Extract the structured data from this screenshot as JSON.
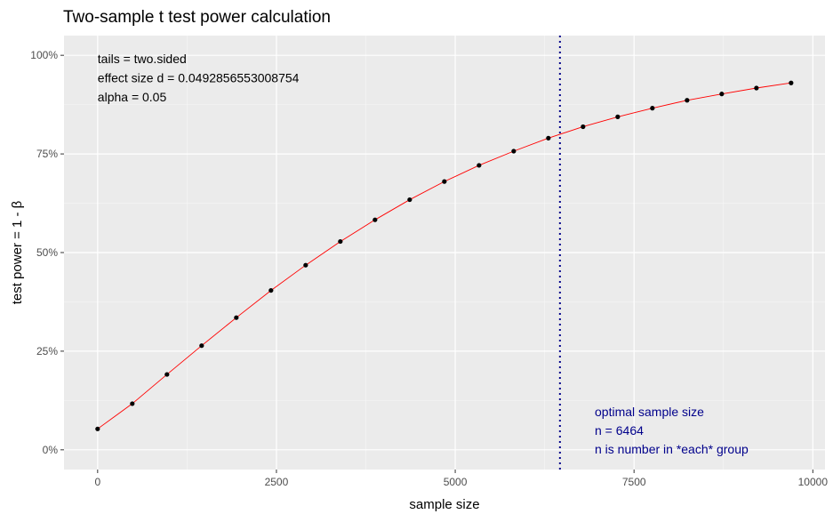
{
  "chart_data": {
    "type": "line",
    "title": "Two-sample t test power calculation",
    "xlabel": "sample size",
    "ylabel": "test power = 1 - β",
    "xlim": [
      -470,
      10170
    ],
    "ylim": [
      -0.05,
      1.05
    ],
    "x_ticks": [
      0,
      2500,
      5000,
      7500,
      10000
    ],
    "x_tick_labels": [
      "0",
      "2500",
      "5000",
      "7500",
      "10000"
    ],
    "y_ticks": [
      0,
      0.25,
      0.5,
      0.75,
      1.0
    ],
    "y_tick_labels": [
      "0%",
      "25%",
      "50%",
      "75%",
      "100%"
    ],
    "grid": true,
    "series": [
      {
        "line_color": "#FF0000",
        "point_color": "#000000",
        "x": [
          0,
          484.8,
          969.6,
          1454.4,
          1939.2,
          2424,
          2908.8,
          3393.6,
          3878.4,
          4363.2,
          4848,
          5332.8,
          5817.6,
          6302.4,
          6787.2,
          7272,
          7756.8,
          8241.6,
          8726.4,
          9211.2,
          9696
        ],
        "y": [
          0.053,
          0.117,
          0.191,
          0.264,
          0.335,
          0.404,
          0.468,
          0.528,
          0.583,
          0.634,
          0.68,
          0.721,
          0.757,
          0.79,
          0.819,
          0.844,
          0.866,
          0.886,
          0.902,
          0.917,
          0.93
        ]
      }
    ],
    "vline": {
      "x": 6464,
      "color": "#00008B",
      "style": "dotted"
    },
    "annotations_left": [
      "tails = two.sided",
      "effect size d = 0.0492856553008754",
      "alpha = 0.05"
    ],
    "annotations_right": [
      "optimal sample size",
      "n = 6464",
      "n is number in *each* group"
    ],
    "annotation_right_color": "#00008B"
  }
}
